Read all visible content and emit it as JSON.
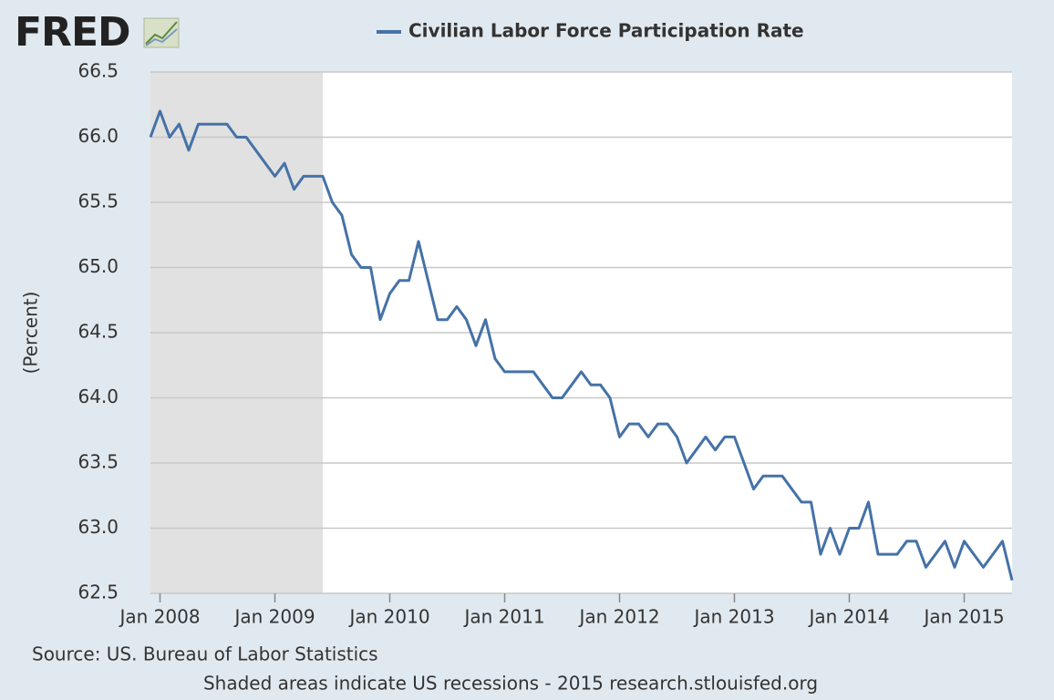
{
  "logo": "FRED",
  "chart_data": {
    "type": "line",
    "y_label": "(Percent)",
    "source": "Source: US. Bureau of Labor Statistics",
    "note": "Shaded areas indicate US recessions - 2015 research.stlouisfed.org",
    "x": [
      "2007-12",
      "2008-01",
      "2008-02",
      "2008-03",
      "2008-04",
      "2008-05",
      "2008-06",
      "2008-07",
      "2008-08",
      "2008-09",
      "2008-10",
      "2008-11",
      "2008-12",
      "2009-01",
      "2009-02",
      "2009-03",
      "2009-04",
      "2009-05",
      "2009-06",
      "2009-07",
      "2009-08",
      "2009-09",
      "2009-10",
      "2009-11",
      "2009-12",
      "2010-01",
      "2010-02",
      "2010-03",
      "2010-04",
      "2010-05",
      "2010-06",
      "2010-07",
      "2010-08",
      "2010-09",
      "2010-10",
      "2010-11",
      "2010-12",
      "2011-01",
      "2011-02",
      "2011-03",
      "2011-04",
      "2011-05",
      "2011-06",
      "2011-07",
      "2011-08",
      "2011-09",
      "2011-10",
      "2011-11",
      "2011-12",
      "2012-01",
      "2012-02",
      "2012-03",
      "2012-04",
      "2012-05",
      "2012-06",
      "2012-07",
      "2012-08",
      "2012-09",
      "2012-10",
      "2012-11",
      "2012-12",
      "2013-01",
      "2013-02",
      "2013-03",
      "2013-04",
      "2013-05",
      "2013-06",
      "2013-07",
      "2013-08",
      "2013-09",
      "2013-10",
      "2013-11",
      "2013-12",
      "2014-01",
      "2014-02",
      "2014-03",
      "2014-04",
      "2014-05",
      "2014-06",
      "2014-07",
      "2014-08",
      "2014-09",
      "2014-10",
      "2014-11",
      "2014-12",
      "2015-01",
      "2015-02",
      "2015-03",
      "2015-04",
      "2015-05",
      "2015-06"
    ],
    "series": [
      {
        "name": "Civilian Labor Force Participation Rate",
        "color": "#4572a7",
        "values": [
          66.0,
          66.2,
          66.0,
          66.1,
          65.9,
          66.1,
          66.1,
          66.1,
          66.1,
          66.0,
          66.0,
          65.9,
          65.8,
          65.7,
          65.8,
          65.6,
          65.7,
          65.7,
          65.7,
          65.5,
          65.4,
          65.1,
          65.0,
          65.0,
          64.6,
          64.8,
          64.9,
          64.9,
          65.2,
          64.9,
          64.6,
          64.6,
          64.7,
          64.6,
          64.4,
          64.6,
          64.3,
          64.2,
          64.2,
          64.2,
          64.2,
          64.1,
          64.0,
          64.0,
          64.1,
          64.2,
          64.1,
          64.1,
          64.0,
          63.7,
          63.8,
          63.8,
          63.7,
          63.8,
          63.8,
          63.7,
          63.5,
          63.6,
          63.7,
          63.6,
          63.7,
          63.7,
          63.5,
          63.3,
          63.4,
          63.4,
          63.4,
          63.3,
          63.2,
          63.2,
          62.8,
          63.0,
          62.8,
          63.0,
          63.0,
          63.2,
          62.8,
          62.8,
          62.8,
          62.9,
          62.9,
          62.7,
          62.8,
          62.9,
          62.7,
          62.9,
          62.8,
          62.7,
          62.8,
          62.9,
          62.6
        ]
      }
    ],
    "recessions": [
      {
        "start": "2007-12",
        "end": "2009-06"
      }
    ],
    "xlim": [
      "2007-12",
      "2015-06"
    ],
    "xticks": [
      {
        "value": "2008-01",
        "label": "Jan 2008"
      },
      {
        "value": "2009-01",
        "label": "Jan 2009"
      },
      {
        "value": "2010-01",
        "label": "Jan 2010"
      },
      {
        "value": "2011-01",
        "label": "Jan 2011"
      },
      {
        "value": "2012-01",
        "label": "Jan 2012"
      },
      {
        "value": "2013-01",
        "label": "Jan 2013"
      },
      {
        "value": "2014-01",
        "label": "Jan 2014"
      },
      {
        "value": "2015-01",
        "label": "Jan 2015"
      }
    ],
    "ylim": [
      62.5,
      66.5
    ],
    "yticks": [
      62.5,
      {
        "value": 63,
        "label": "63.0"
      },
      63.5,
      {
        "value": 64,
        "label": "64.0"
      },
      64.5,
      {
        "value": 65,
        "label": "65.0"
      },
      65.5,
      {
        "value": 66,
        "label": "66.0"
      },
      66.5
    ],
    "grid": true
  }
}
